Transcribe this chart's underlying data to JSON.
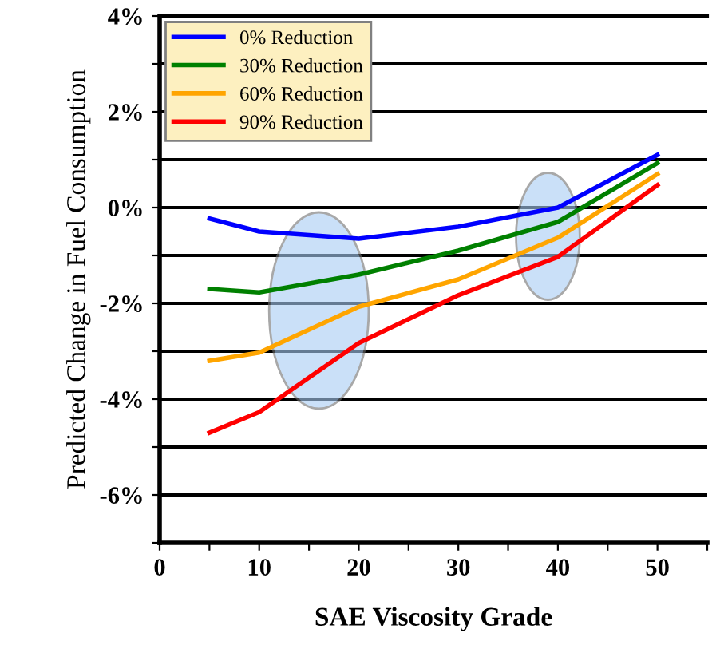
{
  "chart_data": {
    "type": "line",
    "xlabel": "SAE Viscosity Grade",
    "ylabel": "Predicted Change in Fuel Consumption",
    "x": [
      5,
      10,
      20,
      30,
      40,
      50
    ],
    "series": [
      {
        "name": "0% Reduction",
        "color": "#0000ff",
        "values": [
          -0.23,
          -0.5,
          -0.65,
          -0.4,
          0,
          1.1
        ]
      },
      {
        "name": "30% Reduction",
        "color": "#008000",
        "values": [
          -1.7,
          -1.77,
          -1.4,
          -0.9,
          -0.3,
          0.93
        ]
      },
      {
        "name": "60% Reduction",
        "color": "#ffa500",
        "values": [
          -3.2,
          -3.03,
          -2.07,
          -1.5,
          -0.63,
          0.7
        ]
      },
      {
        "name": "90% Reduction",
        "color": "#ff0000",
        "values": [
          -4.7,
          -4.27,
          -2.83,
          -1.83,
          -1.03,
          0.47
        ]
      }
    ],
    "xlim": [
      0,
      55
    ],
    "ylim": [
      -7,
      4
    ],
    "xticks": [
      0,
      {
        "value": 5,
        "label": null
      },
      10,
      {
        "value": 15,
        "label": null
      },
      20,
      {
        "value": 25,
        "label": null
      },
      30,
      {
        "value": 35,
        "label": null
      },
      40,
      {
        "value": 45,
        "label": null
      },
      50,
      {
        "value": 55,
        "label": null
      }
    ],
    "yticks": [
      {
        "value": -7,
        "label": null
      },
      {
        "value": -6,
        "label": "-6%"
      },
      {
        "value": -5,
        "label": null
      },
      {
        "value": -4,
        "label": "-4%"
      },
      {
        "value": -3,
        "label": null
      },
      {
        "value": -2,
        "label": "-2%"
      },
      {
        "value": -1,
        "label": null
      },
      {
        "value": 0,
        "label": "0%"
      },
      {
        "value": 1,
        "label": null
      },
      {
        "value": 2,
        "label": "2%"
      },
      {
        "value": 3,
        "label": null
      },
      {
        "value": 4,
        "label": "4%"
      }
    ],
    "grid": "y",
    "legend": "top left",
    "marker": "none",
    "line_style": "solid"
  }
}
